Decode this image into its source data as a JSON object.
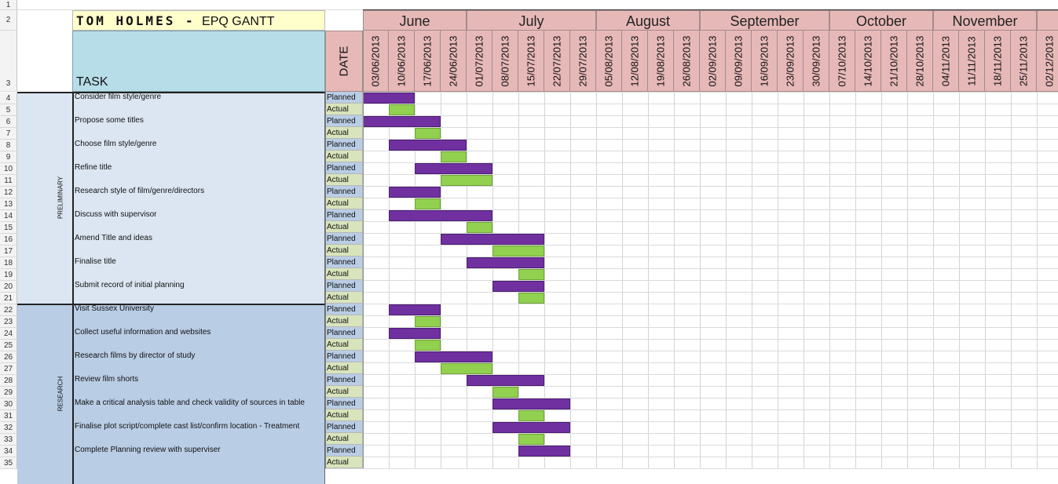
{
  "colors": {
    "planned": "#7030a0",
    "actual": "#92d050",
    "title_bg": "#ffffcc",
    "task_header_bg": "#b7dee8",
    "date_header_bg": "#e6b9b8",
    "preliminary_bg": "#dce6f2",
    "research_bg": "#b9cde5",
    "actual_label_bg": "#d8e4bc"
  },
  "title": {
    "name": "TOM HOLMES -",
    "suffix": "EPQ GANTT"
  },
  "headers": {
    "task": "TASK",
    "date": "DATE"
  },
  "row_numbers": [
    "1",
    "2",
    "3",
    "4",
    "5",
    "6",
    "7",
    "8",
    "9",
    "10",
    "11",
    "12",
    "13",
    "14",
    "15",
    "16",
    "17",
    "18",
    "19",
    "20",
    "21",
    "22",
    "23",
    "24",
    "25",
    "26",
    "27",
    "28",
    "29",
    "30",
    "31",
    "32",
    "33",
    "34",
    "35"
  ],
  "months": [
    {
      "label": "June",
      "weeks": 4
    },
    {
      "label": "July",
      "weeks": 5
    },
    {
      "label": "August",
      "weeks": 4
    },
    {
      "label": "September",
      "weeks": 5
    },
    {
      "label": "October",
      "weeks": 4
    },
    {
      "label": "November",
      "weeks": 4
    },
    {
      "label": "",
      "weeks": 1
    }
  ],
  "dates": [
    "03/06/2013",
    "10/06/2013",
    "17/06/2013",
    "24/06/2013",
    "01/07/2013",
    "08/07/2013",
    "15/07/2013",
    "22/07/2013",
    "29/07/2013",
    "05/08/2013",
    "12/08/2013",
    "19/08/2013",
    "26/08/2013",
    "02/09/2013",
    "09/09/2013",
    "16/09/2013",
    "23/09/2013",
    "30/09/2013",
    "07/10/2013",
    "14/10/2013",
    "21/10/2013",
    "28/10/2013",
    "04/11/2013",
    "11/11/2013",
    "18/11/2013",
    "25/11/2013",
    "02/12/2013"
  ],
  "status_labels": {
    "planned": "Planned",
    "actual": "Actual"
  },
  "groups": [
    {
      "label": "PRELIMINARY",
      "tasks": [
        {
          "name": "Consider film style/genre",
          "planned": [
            0,
            2
          ],
          "actual": [
            1,
            1
          ]
        },
        {
          "name": "Propose some titles",
          "planned": [
            0,
            3
          ],
          "actual": [
            2,
            1
          ]
        },
        {
          "name": "Choose film style/genre",
          "planned": [
            1,
            3
          ],
          "actual": [
            3,
            1
          ]
        },
        {
          "name": "Refine title",
          "planned": [
            2,
            3
          ],
          "actual": [
            3,
            2
          ]
        },
        {
          "name": "Research style of film/genre/directors",
          "planned": [
            1,
            2
          ],
          "actual": [
            2,
            1
          ]
        },
        {
          "name": "Discuss with supervisor",
          "planned": [
            1,
            4
          ],
          "actual": [
            4,
            1
          ]
        },
        {
          "name": "Amend Title and ideas",
          "planned": [
            3,
            4
          ],
          "actual": [
            5,
            2
          ]
        },
        {
          "name": "Finalise title",
          "planned": [
            4,
            3
          ],
          "actual": [
            6,
            1
          ]
        },
        {
          "name": "Submit record of initial planning",
          "planned": [
            5,
            2
          ],
          "actual": [
            6,
            1
          ]
        }
      ]
    },
    {
      "label": "RESEARCH",
      "tasks": [
        {
          "name": "Visit Sussex University",
          "planned": [
            1,
            2
          ],
          "actual": [
            2,
            1
          ]
        },
        {
          "name": "Collect useful information and websites",
          "planned": [
            1,
            2
          ],
          "actual": [
            2,
            1
          ]
        },
        {
          "name": "Research films by director of study",
          "planned": [
            2,
            3
          ],
          "actual": [
            3,
            2
          ]
        },
        {
          "name": "Review film shorts",
          "planned": [
            4,
            3
          ],
          "actual": [
            5,
            1
          ]
        },
        {
          "name": "Make a critical analysis table and check validity of sources in table",
          "planned": [
            5,
            3
          ],
          "actual": [
            6,
            1
          ]
        },
        {
          "name": "Finalise plot script/complete cast list/confirm location - Treatment",
          "planned": [
            5,
            3
          ],
          "actual": [
            6,
            1
          ]
        },
        {
          "name": "Complete Planning review with superviser",
          "planned": [
            6,
            2
          ],
          "actual": null
        }
      ]
    }
  ]
}
